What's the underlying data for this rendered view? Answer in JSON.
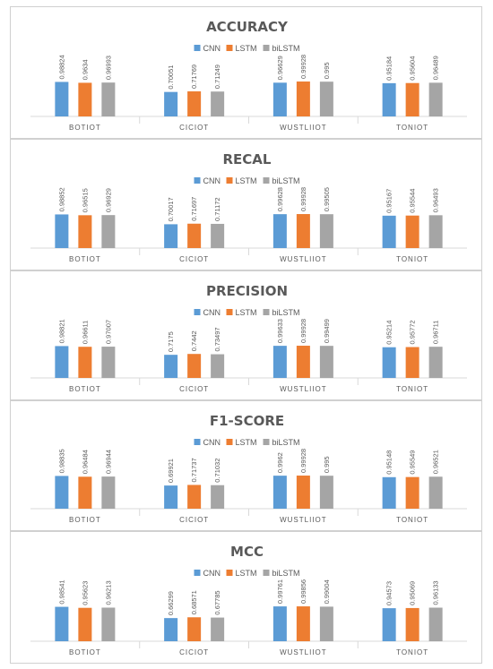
{
  "colors": {
    "CNN": "#5b9bd5",
    "LSTM": "#ed7d31",
    "biLSTM": "#a5a5a5"
  },
  "chart_data": [
    {
      "type": "bar",
      "title": "ACCURACY",
      "categories": [
        "BOTIOT",
        "CICIOT",
        "WUSTLIIOT",
        "TONIOT"
      ],
      "series": [
        {
          "name": "CNN",
          "values": [
            0.98824,
            0.70051,
            0.96629,
            0.95184
          ],
          "labels": [
            "0.98824",
            "0.70051",
            "0.96629",
            "0.95184"
          ]
        },
        {
          "name": "LSTM",
          "values": [
            0.9634,
            0.71769,
            0.99928,
            0.95604
          ],
          "labels": [
            "0.9634",
            "0.71769",
            "0.99928",
            "0.95604"
          ]
        },
        {
          "name": "biLSTM",
          "values": [
            0.96993,
            0.71249,
            0.995,
            0.96489
          ],
          "labels": [
            "0.96993",
            "0.71249",
            "0.995",
            "0.96489"
          ]
        }
      ],
      "legend": "top"
    },
    {
      "type": "bar",
      "title": "RECAL",
      "categories": [
        "BOTIOT",
        "CICIOT",
        "WUSTLIIOT",
        "TONIOT"
      ],
      "series": [
        {
          "name": "CNN",
          "values": [
            0.98852,
            0.70017,
            0.99628,
            0.95167
          ],
          "labels": [
            "0.98852",
            "0.70017",
            "0.99628",
            "0.95167"
          ]
        },
        {
          "name": "LSTM",
          "values": [
            0.96515,
            0.71697,
            0.99928,
            0.95544
          ],
          "labels": [
            "0.96515",
            "0.71697",
            "0.99928",
            "0.95544"
          ]
        },
        {
          "name": "biLSTM",
          "values": [
            0.96929,
            0.71172,
            0.99505,
            0.96493
          ],
          "labels": [
            "0.96929",
            "0.71172",
            "0.99505",
            "0.96493"
          ]
        }
      ],
      "legend": "top"
    },
    {
      "type": "bar",
      "title": "PRECISION",
      "categories": [
        "BOTIOT",
        "CICIOT",
        "WUSTLIIOT",
        "TONIOT"
      ],
      "series": [
        {
          "name": "CNN",
          "values": [
            0.98821,
            0.7175,
            0.99633,
            0.95214
          ],
          "labels": [
            "0.98821",
            "0.7175",
            "0.99633",
            "0.95214"
          ]
        },
        {
          "name": "LSTM",
          "values": [
            0.96611,
            0.7442,
            0.99928,
            0.95772
          ],
          "labels": [
            "0.96611",
            "0.7442",
            "0.99928",
            "0.95772"
          ]
        },
        {
          "name": "biLSTM",
          "values": [
            0.97007,
            0.73497,
            0.99499,
            0.96711
          ],
          "labels": [
            "0.97007",
            "0.73497",
            "0.99499",
            "0.96711"
          ]
        }
      ],
      "legend": "top"
    },
    {
      "type": "bar",
      "title": "F1-SCORE",
      "categories": [
        "BOTIOT",
        "CICIOT",
        "WUSTLIIOT",
        "TONIOT"
      ],
      "series": [
        {
          "name": "CNN",
          "values": [
            0.98835,
            0.69921,
            0.9962,
            0.95148
          ],
          "labels": [
            "0.98835",
            "0.69921",
            "0.9962",
            "0.95148"
          ]
        },
        {
          "name": "LSTM",
          "values": [
            0.96484,
            0.71737,
            0.99928,
            0.95549
          ],
          "labels": [
            "0.96484",
            "0.71737",
            "0.99928",
            "0.95549"
          ]
        },
        {
          "name": "biLSTM",
          "values": [
            0.96944,
            0.71032,
            0.995,
            0.96521
          ],
          "labels": [
            "0.96944",
            "0.71032",
            "0.995",
            "0.96521"
          ]
        }
      ],
      "legend": "top"
    },
    {
      "type": "bar",
      "title": "MCC",
      "categories": [
        "BOTIOT",
        "CICIOT",
        "WUSTLIIOT",
        "TONIOT"
      ],
      "series": [
        {
          "name": "CNN",
          "values": [
            0.98541,
            0.66299,
            0.99761,
            0.94573
          ],
          "labels": [
            "0.98541",
            "0.66299",
            "0.99761",
            "0.94573"
          ]
        },
        {
          "name": "LSTM",
          "values": [
            0.95623,
            0.68571,
            0.99856,
            0.95069
          ],
          "labels": [
            "0.95623",
            "0.68571",
            "0.99856",
            "0.95069"
          ]
        },
        {
          "name": "biLSTM",
          "values": [
            0.96213,
            0.67785,
            0.99004,
            0.96133
          ],
          "labels": [
            "0.96213",
            "0.67785",
            "0.99004",
            "0.96133"
          ]
        }
      ],
      "legend": "top"
    }
  ]
}
